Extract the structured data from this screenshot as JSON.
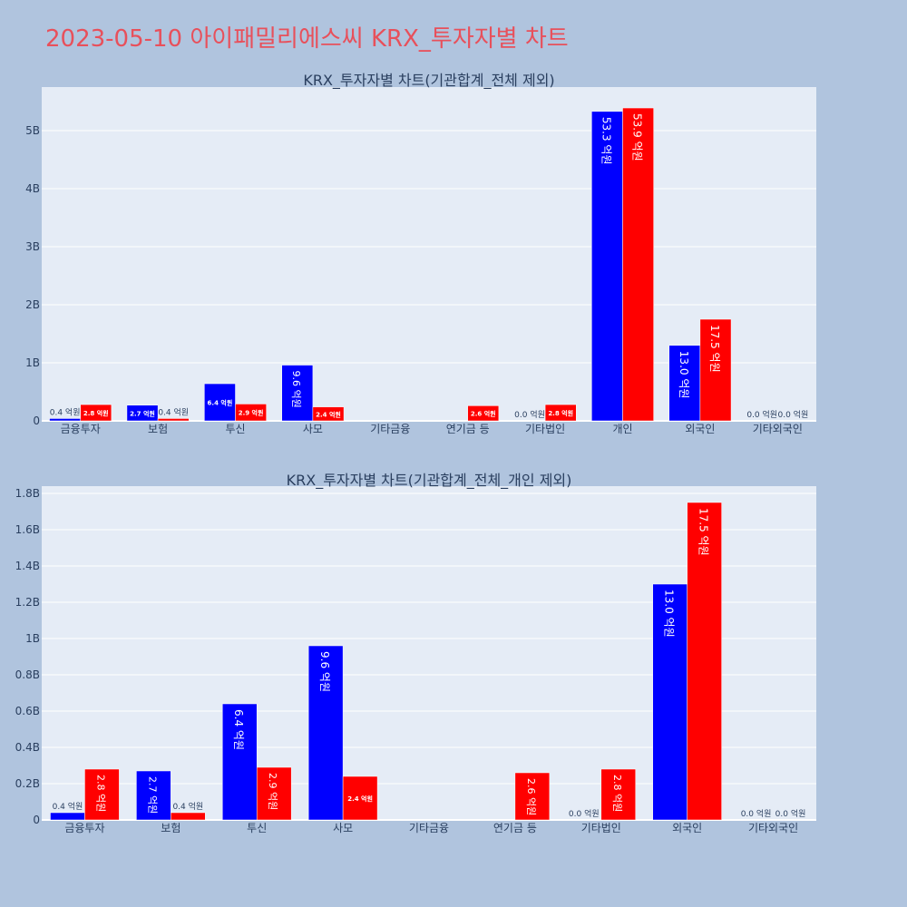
{
  "page": {
    "title": "2023-05-10 아이패밀리에스씨 KRX_투자자별 차트"
  },
  "colors": {
    "background": "#b0c4de",
    "plot_bg": "#e5ecf6",
    "title": "#e8505b",
    "buy": "#0000ff",
    "sell": "#ff0000",
    "text": "#2a3f5f"
  },
  "chart_data": [
    {
      "type": "bar",
      "title": "KRX_투자자별 차트(기관합계_전체 제외)",
      "categories": [
        "금융투자",
        "보험",
        "투신",
        "사모",
        "기타금융",
        "연기금 등",
        "기타법인",
        "개인",
        "외국인",
        "기타외국인"
      ],
      "series": [
        {
          "values": [
            0.04,
            0.27,
            0.64,
            0.96,
            0,
            0,
            0.0,
            5.33,
            1.3,
            0.0
          ],
          "labels": [
            "0.4 억원",
            "2.7 억원",
            "6.4 억원",
            "9.6 억원",
            "",
            "",
            "0.0 억원",
            "53.3 억원",
            "13.0 억원",
            "0.0 억원"
          ]
        },
        {
          "values": [
            0.28,
            0.04,
            0.29,
            0.24,
            0,
            0.26,
            0.28,
            5.39,
            1.75,
            0.0
          ],
          "labels": [
            "2.8 억원",
            "0.4 억원",
            "2.9 억원",
            "2.4 억원",
            "",
            "2.6 억원",
            "2.8 억원",
            "53.9 억원",
            "17.5 억원",
            "0.0 억원"
          ]
        }
      ],
      "yticks": [
        0,
        1,
        2,
        3,
        4,
        5
      ],
      "yticklabels": [
        "0",
        "1B",
        "2B",
        "3B",
        "4B",
        "5B"
      ],
      "ylim": [
        0,
        5.75
      ],
      "grid": true
    },
    {
      "type": "bar",
      "title": "KRX_투자자별 차트(기관합계_전체_개인 제외)",
      "categories": [
        "금융투자",
        "보험",
        "투신",
        "사모",
        "기타금융",
        "연기금 등",
        "기타법인",
        "외국인",
        "기타외국인"
      ],
      "series": [
        {
          "values": [
            0.04,
            0.27,
            0.64,
            0.96,
            0,
            0,
            0.0,
            1.3,
            0.0
          ],
          "labels": [
            "0.4 억원",
            "2.7 억원",
            "6.4 억원",
            "9.6 억원",
            "",
            "",
            "0.0 억원",
            "13.0 억원",
            "0.0 억원"
          ]
        },
        {
          "values": [
            0.28,
            0.04,
            0.29,
            0.24,
            0,
            0.26,
            0.28,
            1.75,
            0.0
          ],
          "labels": [
            "2.8 억원",
            "0.4 억원",
            "2.9 억원",
            "2.4 억원",
            "",
            "2.6 억원",
            "2.8 억원",
            "17.5 억원",
            "0.0 억원"
          ]
        }
      ],
      "yticks": [
        0,
        0.2,
        0.4,
        0.6,
        0.8,
        1.0,
        1.2,
        1.4,
        1.6,
        1.8
      ],
      "yticklabels": [
        "0",
        "0.2B",
        "0.4B",
        "0.6B",
        "0.8B",
        "1B",
        "1.2B",
        "1.4B",
        "1.6B",
        "1.8B"
      ],
      "ylim": [
        0,
        1.84
      ],
      "grid": true
    }
  ]
}
